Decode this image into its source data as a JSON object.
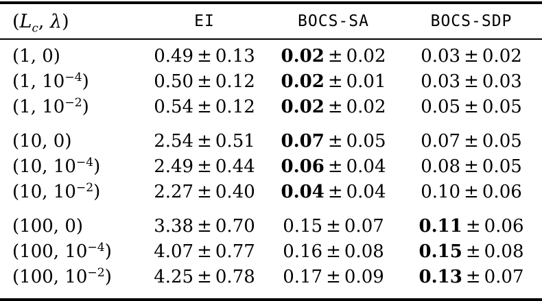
{
  "table": {
    "paren_open": "(",
    "paren_close": ")",
    "comma_sep": ", ",
    "pm": "±",
    "header": {
      "math": {
        "open": "(",
        "L": "L",
        "sub": "c",
        "comma": ",",
        "lambda": "λ",
        "close": ")"
      },
      "columns": [
        "EI",
        "BOCS-SA",
        "BOCS-SDP"
      ]
    },
    "rows": [
      {
        "group": 1,
        "group_start": false,
        "label": {
          "lc": "1",
          "lambda": "0",
          "exp": ""
        },
        "cells": [
          {
            "mean": "0.49",
            "err": "0.13",
            "bold": false
          },
          {
            "mean": "0.02",
            "err": "0.02",
            "bold": true
          },
          {
            "mean": "0.03",
            "err": "0.02",
            "bold": false
          }
        ]
      },
      {
        "group": 1,
        "group_start": false,
        "label": {
          "lc": "1",
          "lambda": "10",
          "exp": "−4"
        },
        "cells": [
          {
            "mean": "0.50",
            "err": "0.12",
            "bold": false
          },
          {
            "mean": "0.02",
            "err": "0.01",
            "bold": true
          },
          {
            "mean": "0.03",
            "err": "0.03",
            "bold": false
          }
        ]
      },
      {
        "group": 1,
        "group_start": false,
        "label": {
          "lc": "1",
          "lambda": "10",
          "exp": "−2"
        },
        "cells": [
          {
            "mean": "0.54",
            "err": "0.12",
            "bold": false
          },
          {
            "mean": "0.02",
            "err": "0.02",
            "bold": true
          },
          {
            "mean": "0.05",
            "err": "0.05",
            "bold": false
          }
        ]
      },
      {
        "group": 2,
        "group_start": true,
        "label": {
          "lc": "10",
          "lambda": "0",
          "exp": ""
        },
        "cells": [
          {
            "mean": "2.54",
            "err": "0.51",
            "bold": false
          },
          {
            "mean": "0.07",
            "err": "0.05",
            "bold": true
          },
          {
            "mean": "0.07",
            "err": "0.05",
            "bold": false
          }
        ]
      },
      {
        "group": 2,
        "group_start": false,
        "label": {
          "lc": "10",
          "lambda": "10",
          "exp": "−4"
        },
        "cells": [
          {
            "mean": "2.49",
            "err": "0.44",
            "bold": false
          },
          {
            "mean": "0.06",
            "err": "0.04",
            "bold": true
          },
          {
            "mean": "0.08",
            "err": "0.05",
            "bold": false
          }
        ]
      },
      {
        "group": 2,
        "group_start": false,
        "label": {
          "lc": "10",
          "lambda": "10",
          "exp": "−2"
        },
        "cells": [
          {
            "mean": "2.27",
            "err": "0.40",
            "bold": false
          },
          {
            "mean": "0.04",
            "err": "0.04",
            "bold": true
          },
          {
            "mean": "0.10",
            "err": "0.06",
            "bold": false
          }
        ]
      },
      {
        "group": 3,
        "group_start": true,
        "label": {
          "lc": "100",
          "lambda": "0",
          "exp": ""
        },
        "cells": [
          {
            "mean": "3.38",
            "err": "0.70",
            "bold": false
          },
          {
            "mean": "0.15",
            "err": "0.07",
            "bold": false
          },
          {
            "mean": "0.11",
            "err": "0.06",
            "bold": true
          }
        ]
      },
      {
        "group": 3,
        "group_start": false,
        "label": {
          "lc": "100",
          "lambda": "10",
          "exp": "−4"
        },
        "cells": [
          {
            "mean": "4.07",
            "err": "0.77",
            "bold": false
          },
          {
            "mean": "0.16",
            "err": "0.08",
            "bold": false
          },
          {
            "mean": "0.15",
            "err": "0.08",
            "bold": true
          }
        ]
      },
      {
        "group": 3,
        "group_start": false,
        "label": {
          "lc": "100",
          "lambda": "10",
          "exp": "−2"
        },
        "cells": [
          {
            "mean": "4.25",
            "err": "0.78",
            "bold": false
          },
          {
            "mean": "0.17",
            "err": "0.09",
            "bold": false
          },
          {
            "mean": "0.13",
            "err": "0.07",
            "bold": true
          }
        ]
      }
    ]
  },
  "colors": {
    "text": "#000000",
    "background": "#ffffff",
    "rule": "#000000"
  }
}
